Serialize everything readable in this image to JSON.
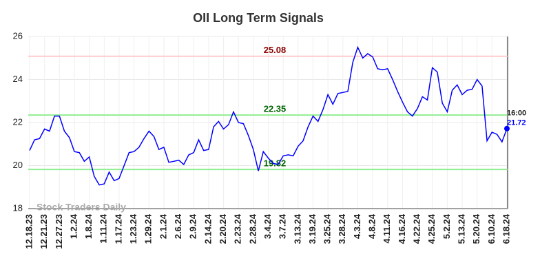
{
  "chart_data": {
    "type": "line",
    "title": "OII Long Term Signals",
    "categories": [
      "12.18.23",
      null,
      null,
      "12.21.23",
      null,
      null,
      "12.27.23",
      null,
      null,
      "1.2.24",
      null,
      null,
      "1.8.24",
      null,
      null,
      "1.11.24",
      null,
      null,
      "1.17.24",
      null,
      null,
      "1.23.24",
      null,
      null,
      "1.29.24",
      null,
      null,
      "2.1.24",
      null,
      null,
      "2.6.24",
      null,
      null,
      "2.9.24",
      null,
      null,
      "2.14.24",
      null,
      null,
      "2.20.24",
      null,
      null,
      "2.23.24",
      null,
      null,
      "2.28.24",
      null,
      null,
      "3.4.24",
      null,
      null,
      "3.7.24",
      null,
      null,
      "3.13.24",
      null,
      null,
      "3.19.24",
      null,
      null,
      "3.25.24",
      null,
      null,
      "3.28.24",
      null,
      null,
      "4.3.24",
      null,
      null,
      "4.8.24",
      null,
      null,
      "4.11.24",
      null,
      null,
      "4.16.24",
      null,
      null,
      "4.22.24",
      null,
      null,
      "4.25.24",
      null,
      null,
      "5.2.24",
      null,
      null,
      "5.13.24",
      null,
      null,
      "5.20.24",
      null,
      null,
      "6.10.24",
      null,
      null,
      "6.18.24"
    ],
    "series": [
      {
        "color": "#0000ff",
        "values": [
          20.7,
          21.2,
          21.25,
          21.7,
          21.6,
          22.3,
          22.3,
          21.6,
          21.3,
          20.65,
          20.6,
          20.2,
          20.4,
          19.5,
          19.1,
          19.15,
          19.7,
          19.3,
          19.4,
          20.0,
          20.6,
          20.65,
          20.85,
          21.25,
          21.6,
          21.35,
          20.75,
          20.85,
          20.15,
          20.2,
          20.25,
          20.05,
          20.5,
          20.6,
          21.2,
          20.7,
          20.75,
          21.8,
          22.05,
          21.7,
          21.9,
          22.5,
          22.0,
          21.95,
          21.4,
          20.75,
          19.75,
          20.65,
          20.35,
          20.1,
          20.05,
          20.45,
          20.5,
          20.45,
          20.9,
          21.15,
          21.8,
          22.3,
          22.05,
          22.6,
          23.3,
          22.85,
          23.35,
          23.4,
          23.45,
          24.8,
          25.5,
          25.0,
          25.2,
          25.05,
          24.5,
          24.45,
          24.5,
          24.0,
          23.45,
          22.95,
          22.5,
          22.3,
          22.65,
          23.2,
          23.05,
          24.55,
          24.35,
          22.9,
          22.5,
          23.5,
          23.75,
          23.3,
          23.5,
          23.55,
          24.0,
          23.7,
          21.15,
          21.55,
          21.45,
          21.1,
          21.72
        ]
      }
    ],
    "hlines": [
      {
        "value": 25.08,
        "color": "#ffcccc",
        "label_color": "#8b0000"
      },
      {
        "value": 22.35,
        "color": "#90ee90",
        "label_color": "#006400"
      },
      {
        "value": 19.82,
        "color": "#90ee90",
        "label_color": "#006400"
      }
    ],
    "last_time": "16:00",
    "watermark": "Stock Traders Daily",
    "ylim": [
      18,
      26
    ],
    "yticks": [
      18,
      20,
      22,
      24,
      26
    ],
    "grid": true
  }
}
